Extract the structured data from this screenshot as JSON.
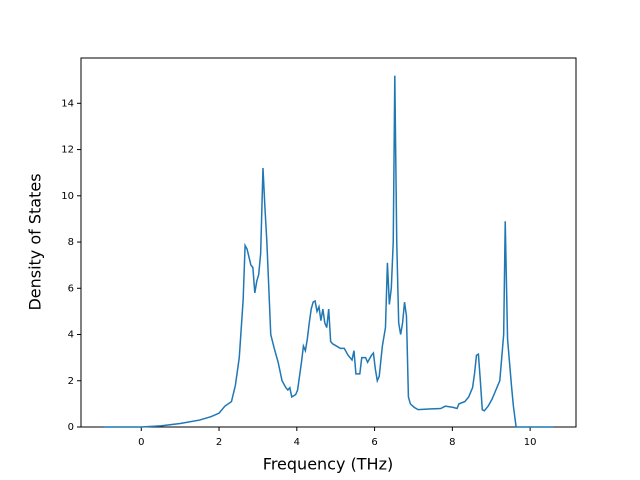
{
  "chart_data": {
    "type": "line",
    "xlabel": "Frequency (THz)",
    "ylabel": "Density of States",
    "xlim": [
      -1.55,
      11.18
    ],
    "ylim": [
      0,
      15.96
    ],
    "xticks": [
      0,
      2,
      4,
      6,
      8,
      10
    ],
    "yticks": [
      0,
      2,
      4,
      6,
      8,
      10,
      12,
      14
    ],
    "series": [
      {
        "color": "#1f77b4",
        "x": [
          -0.97,
          0,
          0.5,
          1.0,
          1.5,
          1.8,
          2.0,
          2.15,
          2.32,
          2.42,
          2.52,
          2.62,
          2.67,
          2.72,
          2.82,
          2.87,
          2.92,
          2.97,
          3.02,
          3.07,
          3.13,
          3.18,
          3.23,
          3.28,
          3.33,
          3.42,
          3.52,
          3.62,
          3.72,
          3.77,
          3.82,
          3.87,
          3.97,
          4.02,
          4.12,
          4.17,
          4.22,
          4.27,
          4.32,
          4.37,
          4.42,
          4.47,
          4.52,
          4.57,
          4.62,
          4.67,
          4.72,
          4.77,
          4.82,
          4.87,
          4.92,
          5.02,
          5.12,
          5.22,
          5.32,
          5.42,
          5.47,
          5.52,
          5.62,
          5.67,
          5.77,
          5.82,
          5.92,
          5.97,
          6.02,
          6.07,
          6.12,
          6.2,
          6.28,
          6.33,
          6.38,
          6.43,
          6.48,
          6.52,
          6.57,
          6.62,
          6.67,
          6.72,
          6.77,
          6.82,
          6.87,
          6.92,
          7.02,
          7.12,
          7.4,
          7.7,
          7.82,
          8.02,
          8.12,
          8.17,
          8.32,
          8.42,
          8.52,
          8.57,
          8.62,
          8.67,
          8.72,
          8.77,
          8.82,
          8.92,
          9.02,
          9.12,
          9.22,
          9.27,
          9.32,
          9.36,
          9.42,
          9.47,
          9.52,
          9.57,
          9.64,
          10.6
        ],
        "values": [
          0,
          0,
          0.05,
          0.15,
          0.3,
          0.45,
          0.6,
          0.9,
          1.1,
          1.8,
          3.0,
          5.5,
          7.85,
          7.7,
          7.0,
          6.9,
          5.8,
          6.3,
          6.6,
          7.5,
          11.2,
          9.5,
          8.0,
          6.0,
          4.0,
          3.4,
          2.8,
          2.0,
          1.7,
          1.6,
          1.7,
          1.3,
          1.4,
          1.6,
          2.8,
          3.5,
          3.3,
          3.8,
          4.5,
          5.1,
          5.4,
          5.45,
          5.0,
          5.2,
          4.6,
          5.1,
          4.5,
          4.3,
          5.1,
          3.7,
          3.6,
          3.5,
          3.4,
          3.4,
          3.1,
          2.9,
          3.3,
          2.3,
          2.3,
          3.0,
          3.0,
          2.8,
          3.1,
          3.2,
          2.5,
          2.0,
          2.2,
          3.5,
          4.3,
          7.1,
          5.3,
          6.0,
          8.0,
          15.2,
          8.0,
          4.5,
          4.0,
          4.5,
          5.4,
          4.8,
          1.3,
          1.0,
          0.85,
          0.75,
          0.78,
          0.8,
          0.9,
          0.85,
          0.8,
          1.0,
          1.1,
          1.3,
          1.7,
          2.3,
          3.1,
          3.15,
          2.0,
          0.75,
          0.7,
          0.9,
          1.2,
          1.6,
          2.0,
          3.0,
          4.0,
          8.9,
          3.8,
          2.8,
          1.8,
          0.9,
          0,
          0
        ]
      }
    ]
  }
}
